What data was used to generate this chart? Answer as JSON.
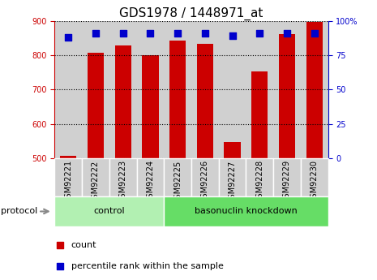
{
  "title": "GDS1978 / 1448971_at",
  "samples": [
    "GSM92221",
    "GSM92222",
    "GSM92223",
    "GSM92224",
    "GSM92225",
    "GSM92226",
    "GSM92227",
    "GSM92228",
    "GSM92229",
    "GSM92230"
  ],
  "counts": [
    507,
    808,
    828,
    800,
    843,
    833,
    547,
    752,
    862,
    898
  ],
  "percentile_ranks": [
    88,
    91,
    91,
    91,
    91,
    91,
    89,
    91,
    91,
    91
  ],
  "ylim_left": [
    500,
    900
  ],
  "ylim_right": [
    0,
    100
  ],
  "yticks_left": [
    500,
    600,
    700,
    800,
    900
  ],
  "yticks_right": [
    0,
    25,
    50,
    75,
    100
  ],
  "bar_color": "#cc0000",
  "dot_color": "#0000cc",
  "grid_color": "#000000",
  "left_axis_color": "#cc0000",
  "right_axis_color": "#0000cc",
  "protocol_groups": [
    {
      "label": "control",
      "start": 0,
      "end": 3,
      "color": "#b2f0b2"
    },
    {
      "label": "basonuclin knockdown",
      "start": 4,
      "end": 9,
      "color": "#66dd66"
    }
  ],
  "protocol_label": "protocol",
  "legend_count_label": "count",
  "legend_percentile_label": "percentile rank within the sample",
  "bar_width": 0.6,
  "dot_size": 30,
  "tick_label_size": 7,
  "title_fontsize": 11,
  "group_label_fontsize": 8,
  "protocol_label_fontsize": 8,
  "sample_box_color": "#d0d0d0",
  "fig_width": 4.65,
  "fig_height": 3.45,
  "fig_dpi": 100
}
